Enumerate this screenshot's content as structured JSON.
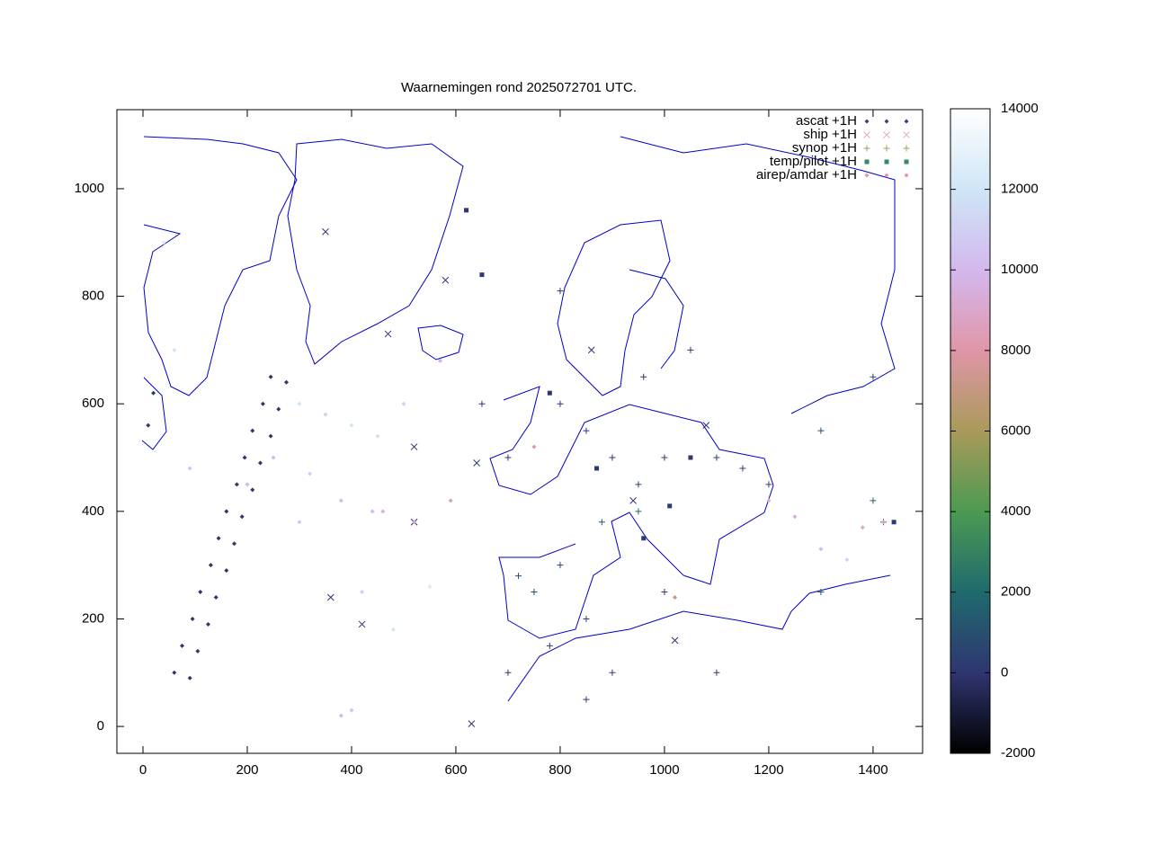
{
  "chart_data": {
    "type": "scatter",
    "title": "Waarnemingen rond 2025072701 UTC.",
    "xlim": [
      -50,
      1495
    ],
    "ylim": [
      -50,
      1147
    ],
    "xticks": [
      0,
      200,
      400,
      600,
      800,
      1000,
      1200,
      1400
    ],
    "yticks": [
      0,
      200,
      400,
      600,
      800,
      1000
    ],
    "colorbar": {
      "zlim": [
        -2000,
        14000
      ],
      "zticks": [
        -2000,
        0,
        2000,
        4000,
        6000,
        8000,
        10000,
        12000,
        14000
      ],
      "palette": [
        "#000000",
        "#2f3570",
        "#1f6a6e",
        "#4c9a52",
        "#a99a5a",
        "#e096a8",
        "#d3b8ee",
        "#cfe6f6",
        "#ffffff"
      ]
    },
    "legend": "top-right",
    "series": [
      {
        "name": "ascat +1H",
        "color": "#3a4178",
        "marker": "dot",
        "x": [
          60,
          90,
          75,
          105,
          95,
          125,
          110,
          140,
          130,
          160,
          145,
          175,
          160,
          190,
          180,
          210,
          195,
          225,
          210,
          245,
          230,
          260,
          245,
          275,
          20,
          10,
          300,
          350,
          400,
          450,
          250,
          320,
          90,
          60,
          40,
          380,
          460,
          420,
          480,
          550,
          400
        ],
        "values": [
          100,
          90,
          150,
          140,
          200,
          190,
          250,
          240,
          300,
          290,
          350,
          340,
          400,
          390,
          450,
          440,
          500,
          490,
          550,
          540,
          600,
          590,
          650,
          640,
          620,
          560,
          600,
          580,
          560,
          540,
          500,
          470,
          480,
          700,
          900,
          420,
          400,
          250,
          180,
          260,
          30
        ],
        "z": [
          0,
          0,
          0,
          0,
          0,
          0,
          0,
          0,
          0,
          0,
          0,
          0,
          0,
          0,
          0,
          0,
          0,
          0,
          0,
          0,
          0,
          0,
          0,
          0,
          0,
          0,
          12000,
          11000,
          12000,
          11500,
          10000,
          11000,
          10500,
          12000,
          12500,
          10000,
          9500,
          11000,
          12000,
          12500,
          10500
        ]
      },
      {
        "name": "ship +1H",
        "color": "#e6a8c4",
        "marker": "x",
        "x": [
          630,
          520,
          470,
          350,
          580,
          1080,
          640,
          520,
          360,
          420,
          860,
          1020,
          940
        ],
        "values": [
          5,
          520,
          730,
          920,
          830,
          560,
          490,
          380,
          240,
          190,
          700,
          160,
          420
        ],
        "z": [
          0,
          0,
          0,
          0,
          0,
          0,
          200,
          0,
          0,
          0,
          0,
          0,
          0
        ]
      },
      {
        "name": "synop +1H",
        "color": "#a99a5a",
        "marker": "plus",
        "x": [
          900,
          950,
          1000,
          850,
          800,
          750,
          800,
          850,
          880,
          950,
          1100,
          1150,
          1200,
          1300,
          1400,
          1420,
          900,
          850,
          700,
          1000,
          1100,
          700,
          650,
          960,
          1050,
          1300,
          720,
          780,
          1400,
          800
        ],
        "values": [
          500,
          450,
          500,
          550,
          600,
          250,
          300,
          200,
          380,
          400,
          500,
          480,
          450,
          550,
          420,
          380,
          100,
          50,
          100,
          250,
          100,
          500,
          600,
          650,
          700,
          250,
          280,
          150,
          650,
          810
        ],
        "z": [
          200,
          400,
          300,
          100,
          50,
          600,
          700,
          300,
          1500,
          2000,
          200,
          300,
          400,
          800,
          1500,
          1200,
          300,
          200,
          100,
          100,
          200,
          50,
          20,
          100,
          50,
          1000,
          800,
          500,
          600,
          20
        ]
      },
      {
        "name": "temp/pilot +1H",
        "color": "#2f8a6a",
        "marker": "square",
        "x": [
          620,
          780,
          960,
          1010,
          1440,
          870,
          650,
          1050
        ],
        "values": [
          960,
          620,
          350,
          410,
          380,
          480,
          840,
          500
        ],
        "z": [
          50,
          20,
          300,
          200,
          200,
          100,
          30,
          150
        ]
      },
      {
        "name": "airep/amdar +1H",
        "color": "#e096a8",
        "marker": "dot",
        "x": [
          1380,
          1420,
          1250,
          1300,
          1350,
          1200,
          590,
          520,
          440,
          750,
          1020,
          570,
          500,
          380,
          300,
          200
        ],
        "values": [
          370,
          380,
          390,
          330,
          310,
          420,
          420,
          380,
          400,
          520,
          240,
          680,
          600,
          20,
          380,
          450
        ],
        "z": [
          9000,
          8500,
          9500,
          10000,
          11000,
          9000,
          8500,
          9000,
          10000,
          8000,
          7000,
          9500,
          11000,
          10000,
          10500,
          10000
        ]
      }
    ]
  }
}
